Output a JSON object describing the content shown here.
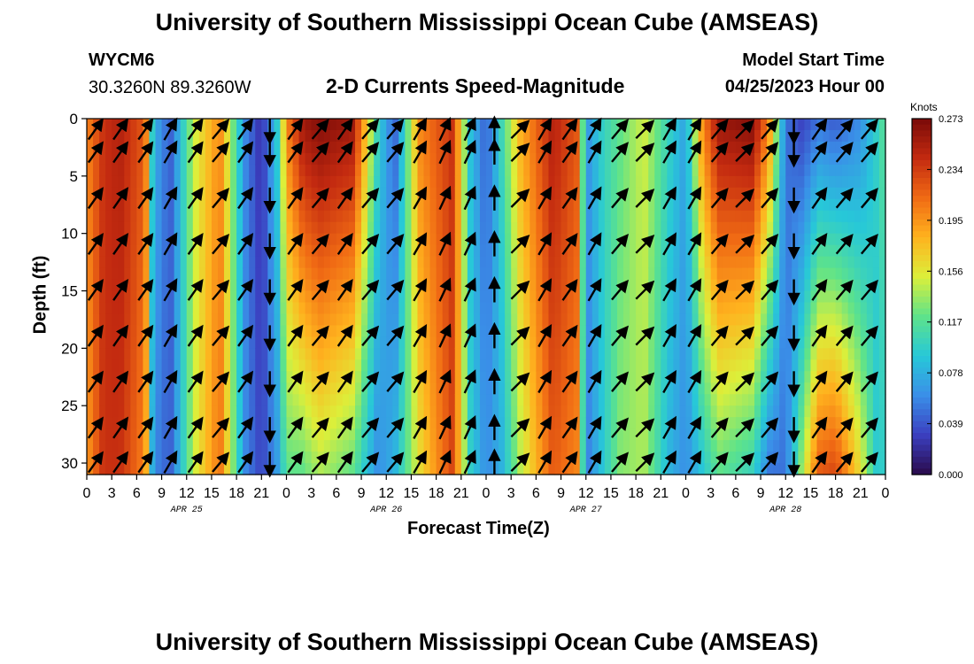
{
  "page": {
    "title_top": "University of Southern Mississippi Ocean Cube (AMSEAS)",
    "title_bottom": "University of Southern Mississippi Ocean Cube (AMSEAS)",
    "station_id": "WYCM6",
    "station_coords": "30.3260N  89.3260W",
    "chart_subtitle": "2-D Currents Speed-Magnitude",
    "model_start_label": "Model Start Time",
    "model_start_value": "04/25/2023 Hour 00"
  },
  "colors": {
    "arrow": "#000000",
    "scale": [
      "#2a0a4a",
      "#3b3fc0",
      "#3a8fe8",
      "#27c8d8",
      "#5ee38a",
      "#dcef3a",
      "#ffb21e",
      "#f06a14",
      "#c32a10",
      "#7a0a08"
    ]
  },
  "chart_data": {
    "type": "heatmap",
    "title": "2-D Currents Speed-Magnitude",
    "xlabel": "Forecast Time(Z)",
    "ylabel": "Depth (ft)",
    "ylim": [
      0,
      31
    ],
    "yticks": [
      0,
      5,
      10,
      15,
      20,
      25,
      30
    ],
    "xlim": [
      0,
      96
    ],
    "xtick_labels": [
      "0",
      "3",
      "6",
      "9",
      "12",
      "15",
      "18",
      "21",
      "0",
      "3",
      "6",
      "9",
      "12",
      "15",
      "18",
      "21",
      "0",
      "3",
      "6",
      "9",
      "12",
      "15",
      "18",
      "21",
      "0",
      "3",
      "6",
      "9",
      "12",
      "15",
      "18",
      "21",
      "0"
    ],
    "day_labels": [
      {
        "label": "APR 25",
        "hour": 12
      },
      {
        "label": "APR 26",
        "hour": 36
      },
      {
        "label": "APR 27",
        "hour": 60
      },
      {
        "label": "APR 28",
        "hour": 84
      }
    ],
    "colorbar": {
      "unit": "Knots",
      "min": 0.0,
      "max": 0.273,
      "ticks": [
        "0.273",
        "0.234",
        "0.195",
        "0.156",
        "0.117",
        "0.078",
        "0.039",
        "0.000"
      ]
    },
    "speed_profile": {
      "hours": [
        0,
        2,
        4,
        7,
        8,
        10,
        13,
        16,
        19,
        21,
        23,
        24,
        26,
        28,
        32,
        35,
        37,
        40,
        44,
        46,
        48,
        50,
        52,
        56,
        59,
        60,
        62,
        64,
        67,
        70,
        72,
        74,
        76,
        80,
        82,
        84,
        86,
        88,
        90,
        93,
        95,
        96
      ],
      "surface": [
        0.2,
        0.24,
        0.25,
        0.22,
        0.08,
        0.04,
        0.15,
        0.2,
        0.06,
        0.02,
        0.1,
        0.2,
        0.26,
        0.27,
        0.26,
        0.1,
        0.04,
        0.2,
        0.24,
        0.09,
        0.04,
        0.11,
        0.18,
        0.25,
        0.22,
        0.06,
        0.1,
        0.12,
        0.15,
        0.1,
        0.07,
        0.2,
        0.26,
        0.27,
        0.2,
        0.05,
        0.03,
        0.05,
        0.04,
        0.06,
        0.1,
        0.12
      ],
      "bottom": [
        0.19,
        0.24,
        0.24,
        0.2,
        0.06,
        0.04,
        0.15,
        0.21,
        0.06,
        0.03,
        0.07,
        0.12,
        0.12,
        0.14,
        0.12,
        0.06,
        0.08,
        0.16,
        0.23,
        0.1,
        0.06,
        0.08,
        0.14,
        0.22,
        0.2,
        0.05,
        0.09,
        0.13,
        0.14,
        0.08,
        0.06,
        0.09,
        0.12,
        0.1,
        0.05,
        0.05,
        0.14,
        0.22,
        0.23,
        0.16,
        0.09,
        0.1
      ]
    },
    "arrow_hours": [
      1,
      4,
      7,
      10,
      13,
      16,
      19,
      22,
      25,
      28,
      31,
      34,
      37,
      40,
      43,
      46,
      49,
      52,
      55,
      58,
      61,
      64,
      67,
      70,
      73,
      76,
      79,
      82,
      85,
      88,
      91,
      94
    ],
    "arrow_depths": [
      1,
      3,
      7,
      11,
      15,
      19,
      23,
      27,
      30
    ],
    "arrow_direction_deg": [
      35,
      35,
      35,
      30,
      35,
      40,
      35,
      180,
      35,
      40,
      35,
      40,
      40,
      30,
      25,
      25,
      0,
      45,
      30,
      35,
      30,
      40,
      45,
      30,
      30,
      40,
      45,
      40,
      180,
      35,
      40,
      40
    ]
  }
}
